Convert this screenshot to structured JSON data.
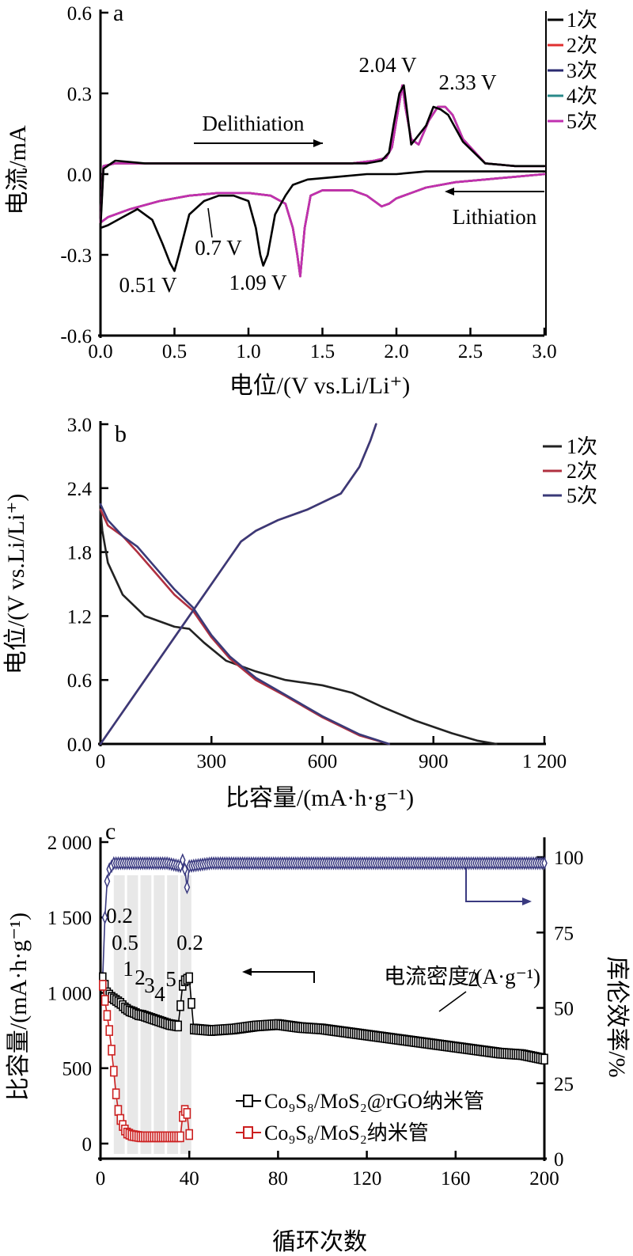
{
  "chart_data": [
    {
      "type": "line",
      "panel_label": "a",
      "xlabel": "电位/(V vs.Li/Li⁺)",
      "ylabel": "电流/mA",
      "xlim": [
        0,
        3.0
      ],
      "ylim": [
        -0.6,
        0.6
      ],
      "x_ticks": [
        "0.0",
        "0.5",
        "1.0",
        "1.5",
        "2.0",
        "2.5",
        "3.0"
      ],
      "y_ticks": [
        "0.6",
        "0.3",
        "0.0",
        "-0.3",
        "-0.6"
      ],
      "legend": {
        "position": "top-right",
        "entries": [
          "1次",
          "2次",
          "3次",
          "4次",
          "5次"
        ]
      },
      "colors": [
        "#000000",
        "#e03030",
        "#2a2a70",
        "#2a8a8a",
        "#c030b0"
      ],
      "annotations": [
        "2.04 V",
        "2.33 V",
        "Delithiation",
        "Lithiation",
        "0.51 V",
        "0.7 V",
        "1.09 V"
      ],
      "series": [
        {
          "name": "1次",
          "x": [
            3.0,
            2.8,
            2.6,
            2.45,
            2.35,
            2.3,
            2.25,
            2.2,
            2.1,
            2.05,
            2.02,
            1.98,
            1.95,
            1.9,
            1.8,
            1.6,
            1.4,
            1.2,
            0.9,
            0.6,
            0.3,
            0.1,
            0.02,
            0.0,
            0.05,
            0.15,
            0.25,
            0.35,
            0.42,
            0.47,
            0.5,
            0.53,
            0.6,
            0.7,
            0.8,
            0.9,
            0.95,
            1.0,
            1.05,
            1.08,
            1.1,
            1.13,
            1.18,
            1.25,
            1.3,
            1.4,
            1.6,
            1.8,
            2.0,
            2.2,
            2.5,
            2.8,
            3.0
          ],
          "y": [
            0.03,
            0.03,
            0.04,
            0.12,
            0.22,
            0.24,
            0.25,
            0.18,
            0.11,
            0.33,
            0.3,
            0.18,
            0.08,
            0.05,
            0.04,
            0.04,
            0.04,
            0.04,
            0.04,
            0.04,
            0.04,
            0.05,
            0.02,
            -0.2,
            -0.19,
            -0.16,
            -0.13,
            -0.17,
            -0.26,
            -0.33,
            -0.36,
            -0.3,
            -0.15,
            -0.1,
            -0.08,
            -0.08,
            -0.09,
            -0.1,
            -0.2,
            -0.3,
            -0.34,
            -0.3,
            -0.15,
            -0.08,
            -0.04,
            -0.02,
            -0.01,
            0.0,
            0.0,
            0.01,
            0.01,
            0.01,
            0.01
          ]
        },
        {
          "name": "5次",
          "x": [
            3.0,
            2.8,
            2.6,
            2.45,
            2.38,
            2.33,
            2.28,
            2.22,
            2.15,
            2.1,
            2.06,
            2.04,
            2.0,
            1.97,
            1.93,
            1.85,
            1.7,
            1.5,
            1.2,
            0.9,
            0.6,
            0.3,
            0.1,
            0.02,
            0.0,
            0.05,
            0.2,
            0.4,
            0.6,
            0.8,
            1.0,
            1.15,
            1.25,
            1.3,
            1.33,
            1.35,
            1.38,
            1.42,
            1.5,
            1.6,
            1.7,
            1.8,
            1.85,
            1.9,
            1.95,
            2.0,
            2.1,
            2.2,
            2.4,
            2.6,
            2.8,
            3.0
          ],
          "y": [
            0.03,
            0.03,
            0.04,
            0.13,
            0.22,
            0.25,
            0.25,
            0.2,
            0.11,
            0.13,
            0.25,
            0.33,
            0.2,
            0.1,
            0.06,
            0.05,
            0.04,
            0.04,
            0.04,
            0.04,
            0.04,
            0.04,
            0.04,
            0.03,
            -0.18,
            -0.16,
            -0.13,
            -0.1,
            -0.08,
            -0.07,
            -0.07,
            -0.08,
            -0.11,
            -0.2,
            -0.3,
            -0.38,
            -0.2,
            -0.08,
            -0.06,
            -0.06,
            -0.06,
            -0.08,
            -0.1,
            -0.12,
            -0.11,
            -0.09,
            -0.07,
            -0.05,
            -0.03,
            -0.02,
            -0.01,
            0.0
          ]
        }
      ]
    },
    {
      "type": "line",
      "panel_label": "b",
      "xlabel": "比容量/(mA·h·g⁻¹)",
      "ylabel": "电位/(V vs.Li/Li⁺)",
      "xlim": [
        0,
        1200
      ],
      "ylim": [
        0,
        3.0
      ],
      "x_ticks": [
        "0",
        "300",
        "600",
        "900",
        "1 200"
      ],
      "y_ticks": [
        "3.0",
        "2.4",
        "1.8",
        "1.2",
        "0.6",
        "0.0"
      ],
      "legend": {
        "position": "top-right",
        "entries": [
          "1次",
          "2次",
          "5次"
        ]
      },
      "colors": [
        "#222222",
        "#b03040",
        "#3a3a78"
      ],
      "series": [
        {
          "name": "1次",
          "x": [
            0,
            5,
            20,
            60,
            120,
            200,
            240,
            280,
            340,
            420,
            500,
            600,
            680,
            760,
            850,
            950,
            1020,
            1070
          ],
          "y": [
            2.2,
            2.0,
            1.7,
            1.4,
            1.2,
            1.1,
            1.08,
            0.95,
            0.78,
            0.68,
            0.6,
            0.55,
            0.48,
            0.35,
            0.22,
            0.1,
            0.03,
            0.0
          ]
        },
        {
          "name": "2次",
          "x": [
            0,
            20,
            60,
            100,
            150,
            200,
            250,
            300,
            350,
            420,
            500,
            600,
            700,
            780,
            0,
            40,
            100,
            160,
            220,
            280,
            340,
            380,
            420,
            480,
            560,
            650,
            700,
            730,
            745
          ],
          "y": [
            2.2,
            2.05,
            1.95,
            1.8,
            1.6,
            1.4,
            1.25,
            1.0,
            0.8,
            0.6,
            0.45,
            0.25,
            0.08,
            0.0,
            0.0,
            0.2,
            0.5,
            0.8,
            1.1,
            1.4,
            1.7,
            1.9,
            2.0,
            2.1,
            2.2,
            2.35,
            2.6,
            2.85,
            3.0
          ]
        },
        {
          "name": "5次",
          "x": [
            0,
            20,
            60,
            100,
            150,
            200,
            250,
            300,
            350,
            420,
            500,
            600,
            700,
            780,
            0,
            40,
            100,
            160,
            220,
            280,
            340,
            380,
            420,
            480,
            560,
            650,
            700,
            730,
            745
          ],
          "y": [
            2.25,
            2.1,
            1.95,
            1.85,
            1.65,
            1.45,
            1.28,
            1.02,
            0.82,
            0.62,
            0.46,
            0.26,
            0.09,
            0.0,
            0.0,
            0.2,
            0.5,
            0.8,
            1.1,
            1.4,
            1.7,
            1.9,
            2.0,
            2.1,
            2.2,
            2.35,
            2.6,
            2.85,
            3.0
          ]
        }
      ]
    },
    {
      "type": "scatter",
      "panel_label": "c",
      "xlabel": "循环次数",
      "ylabel": "比容量/(mA·h·g⁻¹)",
      "y2label": "库伦效率/%",
      "xlim": [
        0,
        200
      ],
      "ylim": [
        -100,
        2000
      ],
      "y2lim": [
        0,
        105
      ],
      "x_ticks": [
        "0",
        "40",
        "80",
        "120",
        "160",
        "200"
      ],
      "y_ticks": [
        "2 000",
        "1 500",
        "1 000",
        "500",
        "0"
      ],
      "y2_ticks": [
        "100",
        "75",
        "50",
        "25",
        "0"
      ],
      "rate_labels": [
        "0.2",
        "0.5",
        "1",
        "2",
        "3",
        "4",
        "5",
        "0.2",
        "2"
      ],
      "rate_caption": "电流密度/(A·g⁻¹)",
      "legend": {
        "position": "bottom-center",
        "entries": [
          "Co₉S₈/MoS₂@rGO纳米管",
          "Co₉S₈/MoS₂纳米管"
        ]
      },
      "colors": [
        "#000000",
        "#cc2020",
        "#3a3a80"
      ],
      "series": [
        {
          "name": "Co₉S₈/MoS₂@rGO纳米管",
          "x": [
            1,
            3,
            5,
            7,
            9,
            11,
            13,
            15,
            17,
            19,
            21,
            23,
            25,
            27,
            29,
            31,
            33,
            35,
            37,
            38,
            40,
            42,
            50,
            60,
            70,
            80,
            90,
            100,
            110,
            120,
            130,
            140,
            150,
            160,
            170,
            180,
            190,
            200
          ],
          "y": [
            1100,
            1000,
            970,
            950,
            930,
            900,
            880,
            870,
            855,
            850,
            840,
            830,
            820,
            810,
            800,
            790,
            785,
            780,
            1050,
            1080,
            1100,
            760,
            750,
            760,
            780,
            790,
            770,
            760,
            740,
            720,
            700,
            680,
            660,
            640,
            620,
            600,
            590,
            560
          ]
        },
        {
          "name": "Co₉S₈/MoS₂纳米管",
          "x": [
            1,
            2,
            3,
            4,
            5,
            6,
            7,
            8,
            9,
            10,
            11,
            12,
            14,
            16,
            18,
            20,
            22,
            24,
            26,
            28,
            30,
            32,
            34,
            36,
            37,
            38,
            39,
            40
          ],
          "y": [
            1050,
            950,
            850,
            750,
            620,
            480,
            330,
            220,
            160,
            120,
            90,
            70,
            55,
            50,
            45,
            45,
            45,
            45,
            45,
            45,
            45,
            45,
            45,
            45,
            180,
            220,
            200,
            60
          ]
        },
        {
          "name": "库伦效率",
          "x": [
            1,
            2,
            3,
            4,
            5,
            6,
            8,
            10,
            20,
            30,
            36,
            37,
            38,
            39,
            40,
            50,
            80,
            120,
            160,
            200
          ],
          "y": [
            60,
            80,
            92,
            96,
            97,
            98,
            98,
            98,
            98,
            98,
            97,
            99,
            96,
            90,
            97,
            98,
            98,
            98,
            98,
            98
          ]
        }
      ]
    }
  ]
}
